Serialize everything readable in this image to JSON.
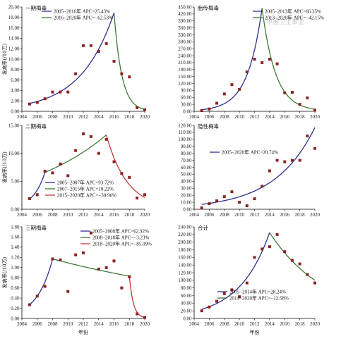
{
  "watermark": "中国卫生事业",
  "colors": {
    "blue": "#2d2f8f",
    "green": "#3e7a36",
    "red": "#2e8b3a",
    "marker": "#8a2324",
    "axis": "#000000"
  },
  "chart_data": [
    {
      "type": "scatter",
      "title": "一期梅毒",
      "ylabel": "发病率(/10万)",
      "xlabel": "",
      "xlim": [
        2004,
        2020
      ],
      "ylim": [
        0,
        20
      ],
      "yticks": [
        "0.00",
        "2.00",
        "4.00",
        "6.00",
        "8.00",
        "10.00",
        "12.00",
        "14.00",
        "16.00",
        "18.00",
        "20.00"
      ],
      "xticks": [
        "2004",
        "2006",
        "2008",
        "2010",
        "2012",
        "2014",
        "2016",
        "2018",
        "2020"
      ],
      "points": {
        "x": [
          2005,
          2006,
          2007,
          2008,
          2009,
          2010,
          2011,
          2012,
          2013,
          2014,
          2015,
          2016,
          2017,
          2018,
          2019,
          2020
        ],
        "y": [
          1.4,
          1.7,
          2.4,
          3.7,
          3.7,
          3.7,
          7.2,
          12.6,
          12.6,
          11.5,
          13.0,
          9.6,
          7.2,
          6.6,
          0.7,
          0.3
        ]
      },
      "series": [
        {
          "name": "2005−2016年 APC=25.43%",
          "color": "#2d2f8f",
          "x": [
            2005,
            2016
          ],
          "y": [
            1.5,
            18.9
          ],
          "apc": 25.43
        },
        {
          "name": "2016−2020年 APC=−62.53%",
          "color": "#3e7a36",
          "x": [
            2016,
            2020
          ],
          "y": [
            18.9,
            0.37
          ],
          "apc": -62.53
        }
      ],
      "legend": "top-left"
    },
    {
      "type": "scatter",
      "title": "胎传梅毒",
      "ylabel": "",
      "xlabel": "",
      "xlim": [
        2004,
        2020
      ],
      "ylim": [
        0,
        450
      ],
      "yticks": [
        "0.00",
        "30.00",
        "60.00",
        "90.00",
        "120.00",
        "150.00",
        "180.00",
        "210.00",
        "240.00",
        "270.00",
        "300.00",
        "330.00",
        "360.00",
        "390.00",
        "420.00",
        "450.00"
      ],
      "xticks": [
        "2004",
        "2006",
        "2008",
        "2010",
        "2012",
        "2014",
        "2016",
        "2018",
        "2020"
      ],
      "points": {
        "x": [
          2005,
          2006,
          2007,
          2008,
          2009,
          2010,
          2011,
          2012,
          2013,
          2014,
          2015,
          2016,
          2017,
          2018,
          2019,
          2020
        ],
        "y": [
          3,
          10,
          35,
          75,
          115,
          95,
          170,
          225,
          210,
          225,
          205,
          80,
          82,
          30,
          58,
          5
        ]
      },
      "series": [
        {
          "name": "2005−2013年 APC=66.35%",
          "color": "#2d2f8f",
          "x": [
            2005,
            2013
          ],
          "y": [
            7,
            445
          ],
          "apc": 66.35
        },
        {
          "name": "2013−2020年 APC=−42.15%",
          "color": "#3e7a36",
          "x": [
            2013,
            2020
          ],
          "y": [
            445,
            9
          ],
          "apc": -42.15
        }
      ],
      "legend": "top-right"
    },
    {
      "type": "scatter",
      "title": "二期梅毒",
      "ylabel": "发病率(/10万)",
      "xlabel": "",
      "xlim": [
        2004,
        2020
      ],
      "ylim": [
        0,
        15
      ],
      "yticks": [
        "0.00",
        "5.00",
        "10.00",
        "15.00"
      ],
      "xticks": [
        "2004",
        "2006",
        "2008",
        "2010",
        "2012",
        "2014",
        "2016",
        "2018",
        "2020"
      ],
      "points": {
        "x": [
          2005,
          2006,
          2007,
          2008,
          2009,
          2010,
          2011,
          2012,
          2013,
          2014,
          2015,
          2016,
          2017,
          2018,
          2019,
          2020
        ],
        "y": [
          1.9,
          2.6,
          6.8,
          6.5,
          8.1,
          6.0,
          10.5,
          13.5,
          13.0,
          10.0,
          12.5,
          8.5,
          6.4,
          5.7,
          2.0,
          2.6
        ]
      },
      "series": [
        {
          "name": "2005−2007年 APC=93.72%",
          "color": "#2d2f8f",
          "x": [
            2005,
            2007
          ],
          "y": [
            1.8,
            6.6
          ],
          "apc": 93.72
        },
        {
          "name": "2007−2015年 APC=10.22%",
          "color": "#3e7a36",
          "x": [
            2007,
            2015
          ],
          "y": [
            6.6,
            13.3
          ],
          "apc": 10.22
        },
        {
          "name": "2015−2020年 APC=−30.96%",
          "color": "#c0393b",
          "x": [
            2015,
            2020
          ],
          "y": [
            13.3,
            2.1
          ],
          "apc": -30.96
        }
      ],
      "legend": "bottom-left"
    },
    {
      "type": "scatter",
      "title": "隐性梅毒",
      "ylabel": "",
      "xlabel": "",
      "xlim": [
        2004,
        2020
      ],
      "ylim": [
        0,
        120
      ],
      "yticks": [
        "0.00",
        "10.00",
        "20.00",
        "30.00",
        "40.00",
        "50.00",
        "60.00",
        "70.00",
        "80.00",
        "90.00",
        "100.00",
        "110.00",
        "120.00"
      ],
      "xticks": [
        "2004",
        "2006",
        "2008",
        "2010",
        "2012",
        "2014",
        "2016",
        "2018",
        "2020"
      ],
      "points": {
        "x": [
          2005,
          2006,
          2007,
          2008,
          2009,
          2010,
          2011,
          2012,
          2013,
          2014,
          2015,
          2016,
          2017,
          2018,
          2019,
          2020
        ],
        "y": [
          2,
          8,
          12,
          18,
          25,
          10,
          5,
          15,
          33,
          55,
          70,
          68,
          70,
          70,
          105,
          87
        ]
      },
      "series": [
        {
          "name": "2005−2020年 APC=20.74%",
          "color": "#2d2f8f",
          "x": [
            2005,
            2020
          ],
          "y": [
            7,
            117
          ],
          "apc": 20.74
        }
      ],
      "legend": "middle-left"
    },
    {
      "type": "scatter",
      "title": "三期梅毒",
      "ylabel": "发病率(/10万)",
      "xlabel": "年份",
      "xlim": [
        2004,
        2020
      ],
      "ylim": [
        0,
        1.8
      ],
      "yticks": [
        "0.00",
        "0.20",
        "0.40",
        "0.60",
        "0.80",
        "1.00",
        "1.20",
        "1.40",
        "1.60",
        "1.80"
      ],
      "xticks": [
        "2004",
        "2006",
        "2008",
        "2010",
        "2012",
        "2014",
        "2016",
        "2018",
        "2020"
      ],
      "points": {
        "x": [
          2005,
          2006,
          2007,
          2008,
          2009,
          2010,
          2011,
          2012,
          2013,
          2014,
          2015,
          2016,
          2017,
          2018,
          2019,
          2020
        ],
        "y": [
          0.27,
          0.44,
          0.63,
          1.17,
          1.15,
          0.53,
          1.25,
          1.29,
          1.68,
          0.97,
          1.0,
          1.13,
          0.6,
          0.82,
          0.09,
          0.02
        ]
      },
      "series": [
        {
          "name": "2005−2008年 APC=62.92%",
          "color": "#2d2f8f",
          "x": [
            2005,
            2008
          ],
          "y": [
            0.27,
            1.17
          ],
          "apc": 62.92
        },
        {
          "name": "2008−2018年 APC=−3.23%",
          "color": "#3e7a36",
          "x": [
            2008,
            2018
          ],
          "y": [
            1.17,
            0.83
          ],
          "apc": -3.23
        },
        {
          "name": "2018−2020年 APC=−85.09%",
          "color": "#c0393b",
          "x": [
            2018,
            2020
          ],
          "y": [
            0.83,
            0.018
          ],
          "apc": -85.09
        }
      ],
      "legend": "top-right"
    },
    {
      "type": "scatter",
      "title": "合计",
      "ylabel": "",
      "xlabel": "年份",
      "xlim": [
        2004,
        2020
      ],
      "ylim": [
        0,
        240
      ],
      "yticks": [
        "0.00",
        "20.00",
        "40.00",
        "60.00",
        "80.00",
        "100.00",
        "120.00",
        "140.00",
        "160.00",
        "180.00",
        "200.00",
        "220.00",
        "240.00"
      ],
      "xticks": [
        "2004",
        "2006",
        "2008",
        "2010",
        "2012",
        "2014",
        "2016",
        "2018",
        "2020"
      ],
      "points": {
        "x": [
          2005,
          2006,
          2007,
          2008,
          2009,
          2010,
          2011,
          2012,
          2013,
          2014,
          2015,
          2016,
          2017,
          2018,
          2019,
          2020
        ],
        "y": [
          20,
          30,
          45,
          65,
          75,
          57,
          93,
          160,
          182,
          188,
          220,
          175,
          152,
          143,
          115,
          93
        ]
      },
      "series": [
        {
          "name": "2005−2014年 APC=28.24%",
          "color": "#2d2f8f",
          "x": [
            2005,
            2014
          ],
          "y": [
            24,
            225
          ],
          "apc": 28.24
        },
        {
          "name": "2014−2020年 APC=−12.58%",
          "color": "#3e7a36",
          "x": [
            2014,
            2020
          ],
          "y": [
            225,
            100
          ],
          "apc": -12.58
        }
      ],
      "legend": "bottom-left"
    }
  ]
}
